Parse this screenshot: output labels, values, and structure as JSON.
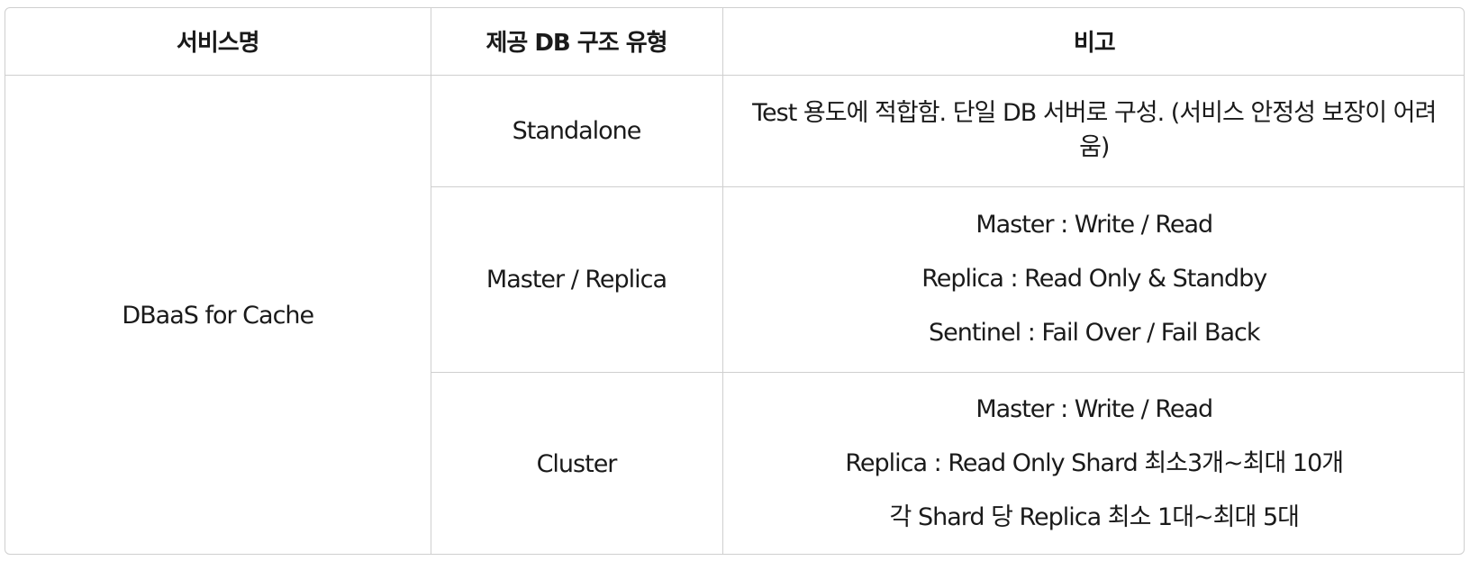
{
  "table": {
    "headers": [
      "서비스명",
      "제공 DB 구조 유형",
      "비고"
    ],
    "service_name": "DBaaS for Cache",
    "rows": [
      {
        "type": "Standalone",
        "notes": [
          "Test 용도에 적합함. 단일 DB 서버로 구성. (서비스 안정성 보장이 어려움)"
        ]
      },
      {
        "type": "Master / Replica",
        "notes": [
          "Master : Write / Read",
          "Replica : Read Only & Standby",
          "Sentinel : Fail Over / Fail Back"
        ]
      },
      {
        "type": "Cluster",
        "notes": [
          "Master : Write / Read",
          "Replica : Read Only Shard 최소3개~최대 10개",
          "각 Shard 당 Replica 최소 1대~최대 5대"
        ]
      }
    ]
  }
}
